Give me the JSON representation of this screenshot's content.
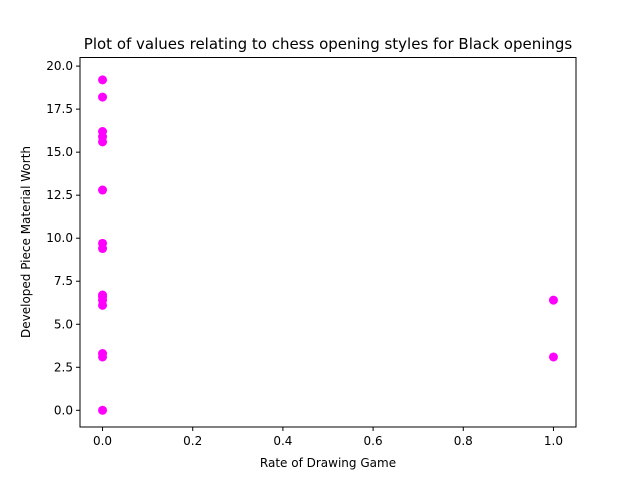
{
  "chart_data": {
    "type": "scatter",
    "title": "Plot of values relating to chess opening styles for Black openings",
    "xlabel": "Rate of Drawing Game",
    "ylabel": "Developed Piece Material Worth",
    "xlim": [
      -0.05,
      1.05
    ],
    "ylim": [
      -0.97,
      20.5
    ],
    "xticks": [
      0.0,
      0.2,
      0.4,
      0.6,
      0.8,
      1.0
    ],
    "xtick_labels": [
      "0.0",
      "0.2",
      "0.4",
      "0.6",
      "0.8",
      "1.0"
    ],
    "yticks": [
      0.0,
      2.5,
      5.0,
      7.5,
      10.0,
      12.5,
      15.0,
      17.5,
      20.0
    ],
    "ytick_labels": [
      "0.0",
      "2.5",
      "5.0",
      "7.5",
      "10.0",
      "12.5",
      "15.0",
      "17.5",
      "20.0"
    ],
    "grid": false,
    "marker_color": "#ff00ff",
    "points": [
      {
        "x": 0,
        "y": 19.2
      },
      {
        "x": 0,
        "y": 18.2
      },
      {
        "x": 0,
        "y": 16.2
      },
      {
        "x": 0,
        "y": 15.9
      },
      {
        "x": 0,
        "y": 15.6
      },
      {
        "x": 0,
        "y": 12.8
      },
      {
        "x": 0,
        "y": 9.7
      },
      {
        "x": 0,
        "y": 9.4
      },
      {
        "x": 0,
        "y": 6.7
      },
      {
        "x": 0,
        "y": 6.6
      },
      {
        "x": 0,
        "y": 6.4
      },
      {
        "x": 0,
        "y": 6.1
      },
      {
        "x": 0,
        "y": 3.3
      },
      {
        "x": 0,
        "y": 3.1
      },
      {
        "x": 0,
        "y": 0.0
      },
      {
        "x": 1,
        "y": 6.4
      },
      {
        "x": 1,
        "y": 3.1
      }
    ]
  }
}
